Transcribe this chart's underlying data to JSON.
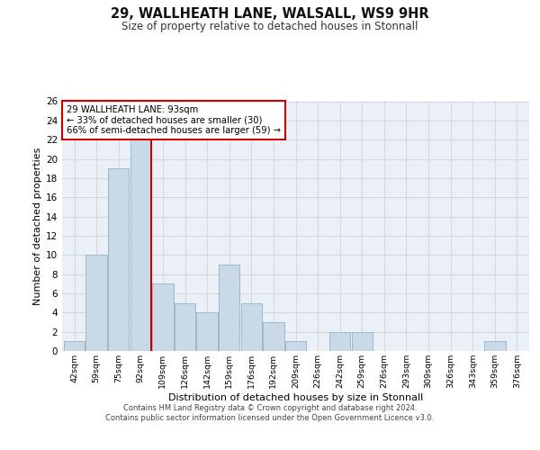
{
  "title_line1": "29, WALLHEATH LANE, WALSALL, WS9 9HR",
  "title_line2": "Size of property relative to detached houses in Stonnall",
  "xlabel": "Distribution of detached houses by size in Stonnall",
  "ylabel": "Number of detached properties",
  "bar_labels": [
    "42sqm",
    "59sqm",
    "75sqm",
    "92sqm",
    "109sqm",
    "126sqm",
    "142sqm",
    "159sqm",
    "176sqm",
    "192sqm",
    "209sqm",
    "226sqm",
    "242sqm",
    "259sqm",
    "276sqm",
    "293sqm",
    "309sqm",
    "326sqm",
    "343sqm",
    "359sqm",
    "376sqm"
  ],
  "bar_values": [
    1,
    10,
    19,
    22,
    7,
    5,
    4,
    9,
    5,
    3,
    1,
    0,
    2,
    2,
    0,
    0,
    0,
    0,
    0,
    1,
    0
  ],
  "bar_color": "#c9d9e8",
  "bar_edge_color": "#a0b8cc",
  "highlight_line_color": "#cc0000",
  "annotation_text": "29 WALLHEATH LANE: 93sqm\n← 33% of detached houses are smaller (30)\n66% of semi-detached houses are larger (59) →",
  "annotation_box_color": "#ffffff",
  "annotation_box_edge_color": "#cc0000",
  "ylim": [
    0,
    26
  ],
  "yticks": [
    0,
    2,
    4,
    6,
    8,
    10,
    12,
    14,
    16,
    18,
    20,
    22,
    24,
    26
  ],
  "background_color": "#eaf0f6",
  "footer_line1": "Contains HM Land Registry data © Crown copyright and database right 2024.",
  "footer_line2": "Contains public sector information licensed under the Open Government Licence v3.0."
}
